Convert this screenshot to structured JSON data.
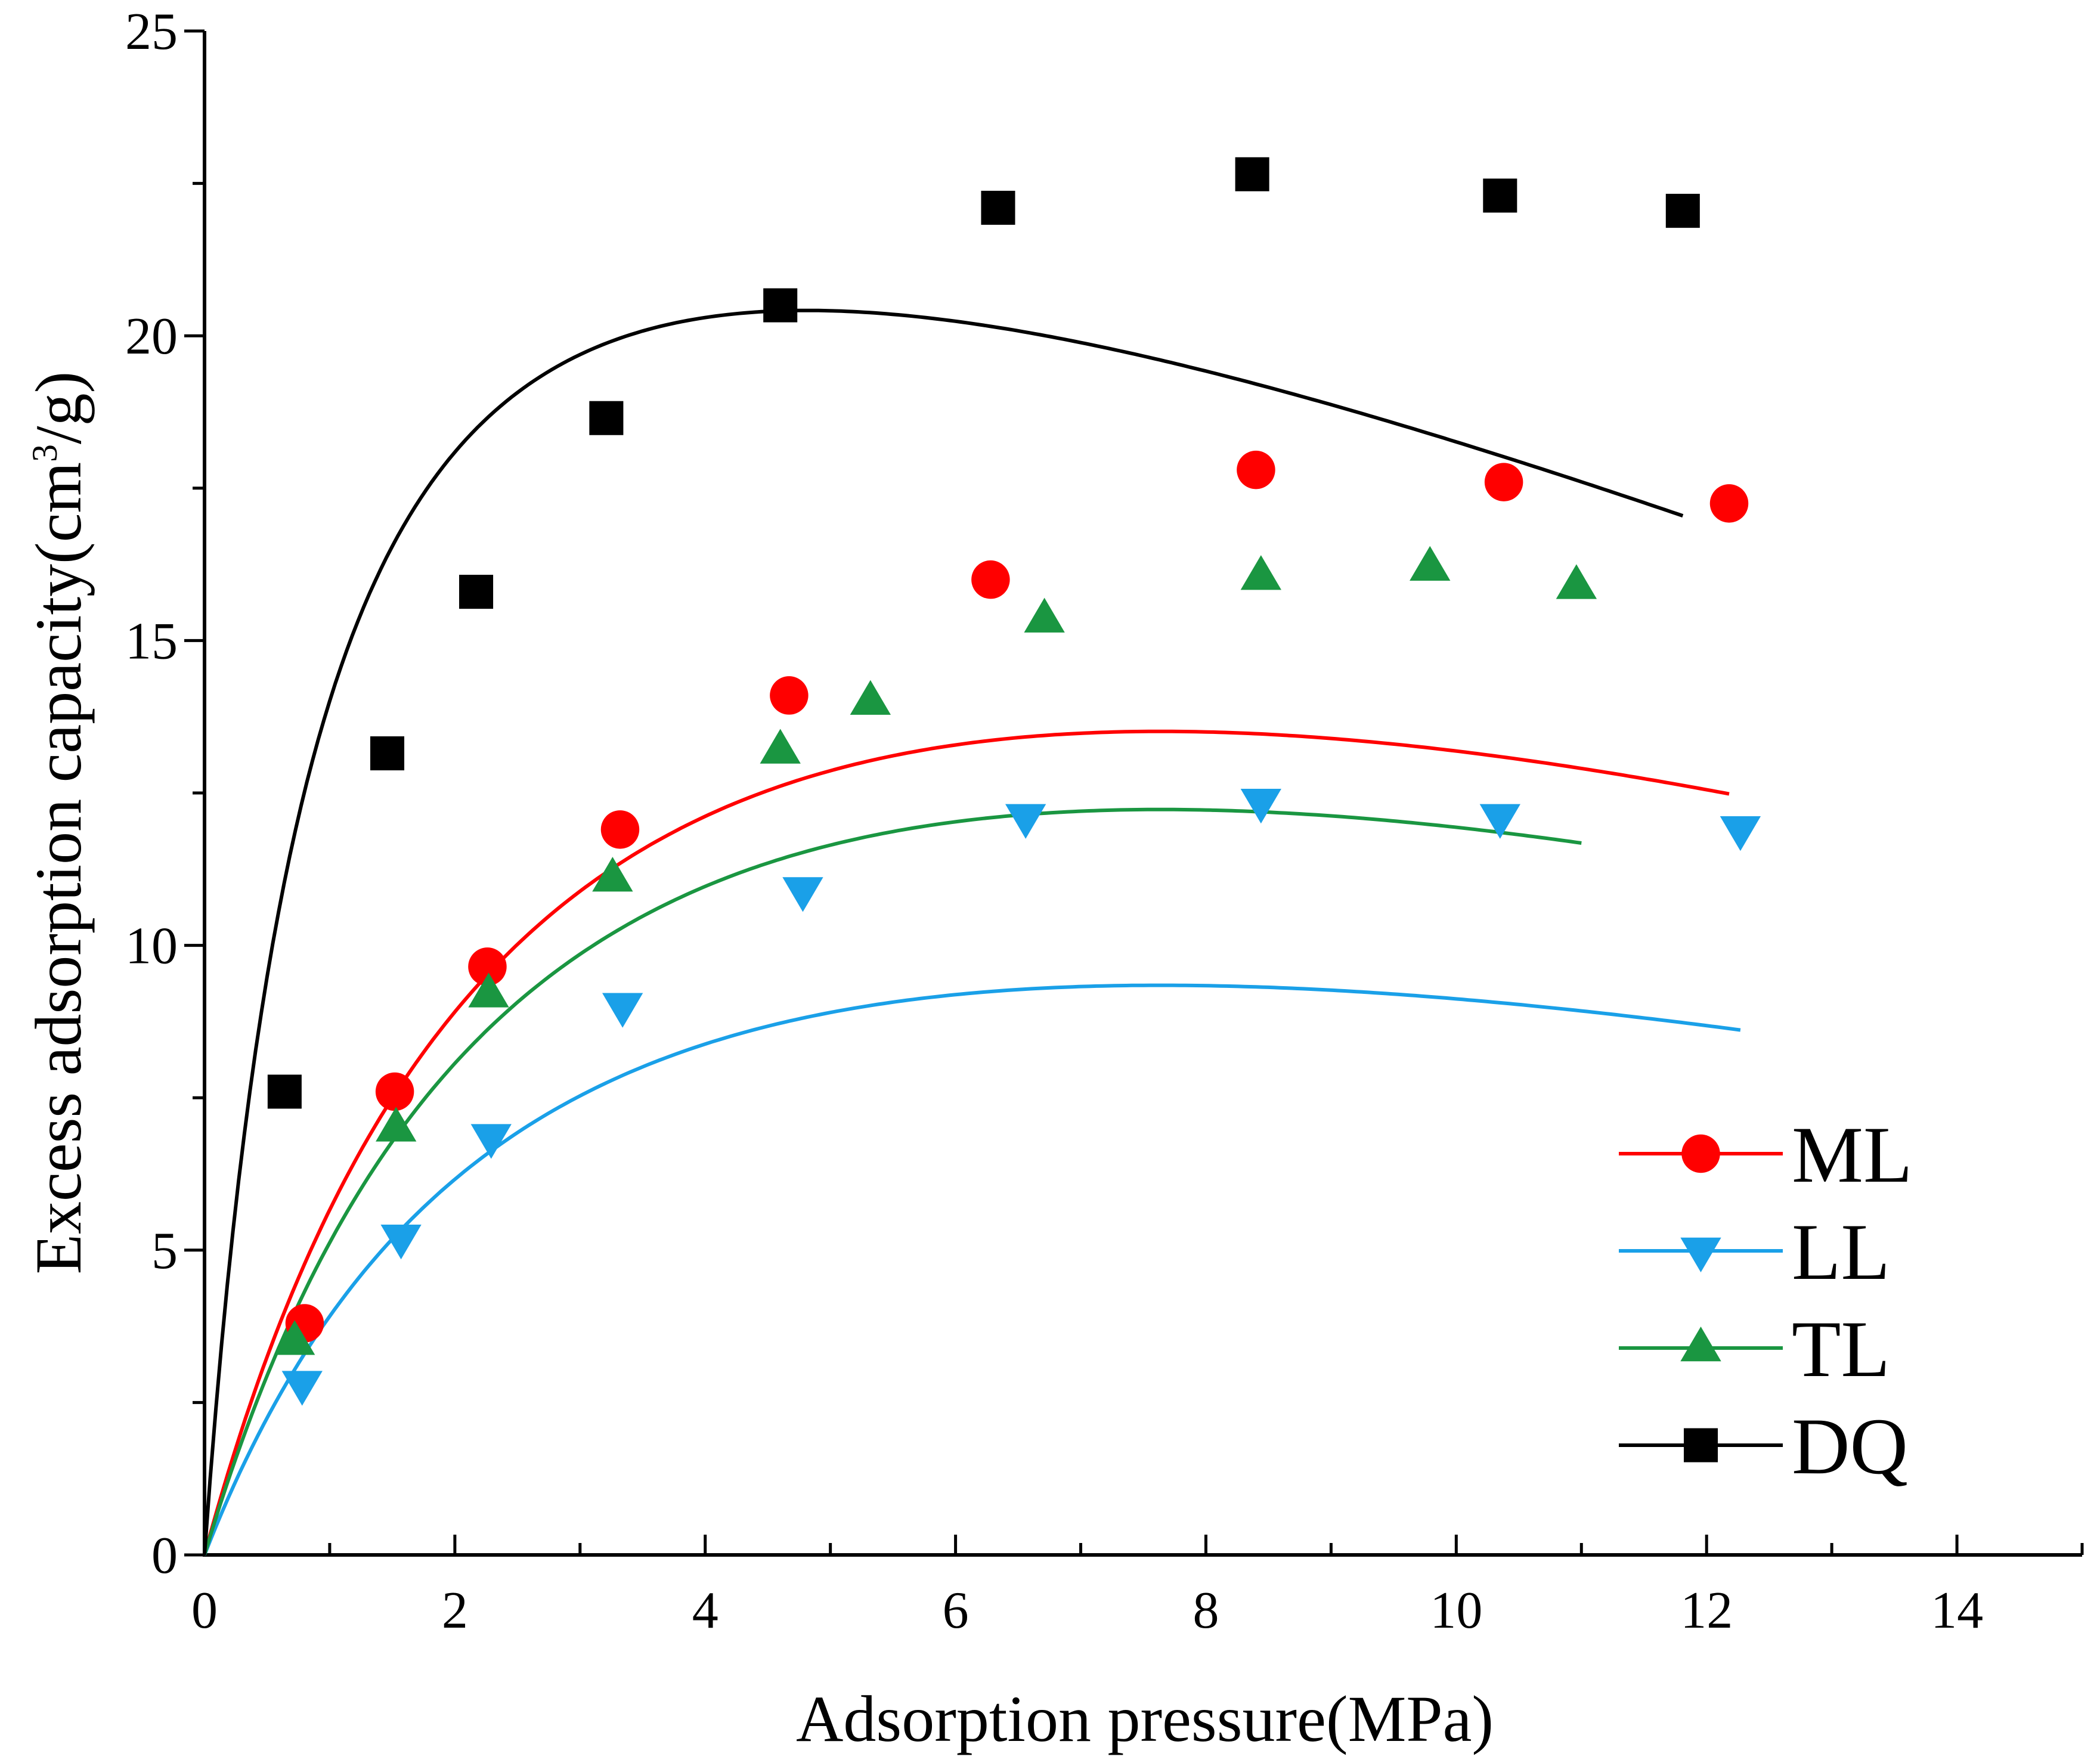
{
  "chart_data": {
    "type": "scatter",
    "title": "",
    "xlabel": "Adsorption pressure(MPa)",
    "ylabel_prefix": "Excess adsorption capacity(cm",
    "ylabel_sup": "3",
    "ylabel_suffix": "/g)",
    "xlim": [
      0,
      15
    ],
    "ylim": [
      0,
      25
    ],
    "x_ticks": [
      0,
      2,
      4,
      6,
      8,
      10,
      12,
      14
    ],
    "y_ticks": [
      0,
      5,
      10,
      15,
      20,
      25
    ],
    "x_tick_labels": [
      "0",
      "2",
      "4",
      "6",
      "8",
      "10",
      "12",
      "14"
    ],
    "y_tick_labels": [
      "0",
      "5",
      "10",
      "15",
      "20",
      "25"
    ],
    "grid": false,
    "legend_position": "bottom-right",
    "series": [
      {
        "name": "ML",
        "marker": "circle",
        "color": "#ff0000",
        "points": [
          [
            0.8,
            3.8
          ],
          [
            1.52,
            7.6
          ],
          [
            2.26,
            9.65
          ],
          [
            3.32,
            11.9
          ],
          [
            4.67,
            14.1
          ],
          [
            6.28,
            16.0
          ],
          [
            8.4,
            17.8
          ],
          [
            10.38,
            17.6
          ],
          [
            12.18,
            17.25
          ]
        ],
        "fit": {
          "model": "langmuir_density",
          "V": 25.3,
          "K": 0.3,
          "rho": 0.0305,
          "xmax": 12.18
        }
      },
      {
        "name": "LL",
        "marker": "triangle-down",
        "color": "#1aa0e8",
        "points": [
          [
            0.78,
            2.8
          ],
          [
            1.57,
            5.2
          ],
          [
            2.29,
            6.85
          ],
          [
            3.34,
            9.0
          ],
          [
            4.78,
            10.9
          ],
          [
            6.56,
            12.1
          ],
          [
            8.44,
            12.35
          ],
          [
            10.35,
            12.1
          ],
          [
            12.27,
            11.9
          ]
        ],
        "fit": {
          "model": "langmuir_density",
          "V": 17.5,
          "K": 0.3,
          "rho": 0.0305,
          "xmax": 12.27
        }
      },
      {
        "name": "TL",
        "marker": "triangle-up",
        "color": "#1a9641",
        "points": [
          [
            0.72,
            3.5
          ],
          [
            1.53,
            7.0
          ],
          [
            2.27,
            9.2
          ],
          [
            3.26,
            11.1
          ],
          [
            4.6,
            13.2
          ],
          [
            5.32,
            14.0
          ],
          [
            6.71,
            15.35
          ],
          [
            8.44,
            16.05
          ],
          [
            9.79,
            16.2
          ],
          [
            10.96,
            15.9
          ]
        ],
        "fit": {
          "model": "langmuir_density",
          "V": 22.9,
          "K": 0.3,
          "rho": 0.0305,
          "xmax": 11.0
        }
      },
      {
        "name": "DQ",
        "marker": "square",
        "color": "#000000",
        "points": [
          [
            0.64,
            7.6
          ],
          [
            1.46,
            13.15
          ],
          [
            2.17,
            15.8
          ],
          [
            3.21,
            18.65
          ],
          [
            4.6,
            20.5
          ],
          [
            6.34,
            22.1
          ],
          [
            8.37,
            22.65
          ],
          [
            10.35,
            22.3
          ],
          [
            11.81,
            22.05
          ]
        ],
        "fit": {
          "model": "langmuir_density",
          "V": 28.9,
          "K": 1.0,
          "rho": 0.0305,
          "xmax": 11.81
        }
      }
    ]
  }
}
